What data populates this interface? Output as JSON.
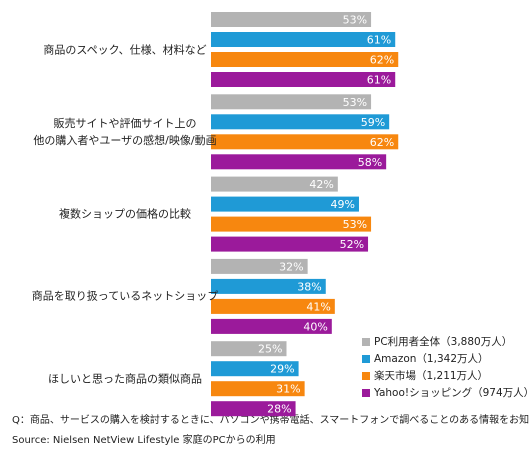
{
  "chart_data": {
    "type": "bar",
    "orientation": "horizontal",
    "categories": [
      "商品のスペック、仕様、材料など",
      "販売サイトや評価サイト上の\n他の購入者やユーザの感想/映像/動画",
      "複数ショップの価格の比較",
      "商品を取り扱っているネットショップ",
      "ほしいと思った商品の類似商品"
    ],
    "series": [
      {
        "name": "PC利用者全体（3,880万人）",
        "color": "#b3b3b3",
        "values": [
          53,
          53,
          42,
          32,
          25
        ],
        "value_labels": [
          "53%",
          "53%",
          "42%",
          "32%",
          "25%"
        ]
      },
      {
        "name": "Amazon（1,342万人）",
        "color": "#1f9ad6",
        "values": [
          61,
          59,
          49,
          38,
          29
        ],
        "value_labels": [
          "61%",
          "59%",
          "49%",
          "38%",
          "29%"
        ]
      },
      {
        "name": "楽天市場（1,211万人）",
        "color": "#f7870f",
        "values": [
          62,
          62,
          53,
          41,
          31
        ],
        "value_labels": [
          "62%",
          "62%",
          "53%",
          "41%",
          "31%"
        ]
      },
      {
        "name": "Yahoo!ショッピング（974万人）",
        "color": "#9b1a9b",
        "values": [
          61,
          58,
          52,
          40,
          28
        ],
        "value_labels": [
          "61%",
          "58%",
          "52%",
          "40%",
          "28%"
        ]
      }
    ],
    "legend": "lower right",
    "note": "Q：商品、サービスの購入を検討するときに、パソコンや携帯電話、スマートフォンで調べることのある情報をお知らせください",
    "source": "Source: Nielsen NetView Lifestyle  家庭のPCからの利用"
  }
}
